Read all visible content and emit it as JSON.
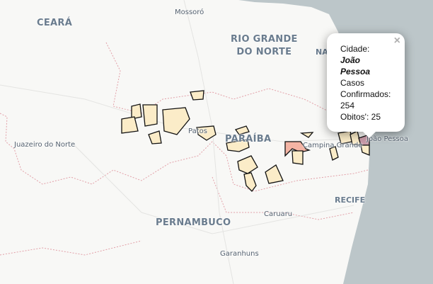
{
  "map": {
    "colors": {
      "land": "#f8f8f6",
      "sea": "#bcc6c9",
      "municipality_low": "#fbecc8",
      "municipality_mid": "#f4b4a4",
      "municipality_high": "#c99aa8",
      "border": "#e2a0a8"
    },
    "state_labels": [
      "CEARÁ",
      "RIO GRANDE DO NORTE",
      "PARAÍBA",
      "PERNAMBUCO"
    ],
    "state_labels_lines": {
      "rn1": "RIO GRANDE",
      "rn2": "DO NORTE"
    },
    "city_labels": {
      "mossoro": "Mossoró",
      "natal": "NA",
      "juazeiro": "Juazeiro do Norte",
      "patos": "Patos",
      "campina": "Campina Grande",
      "joao_pessoa": "João Pessoa",
      "recife": "RECIFE",
      "caruaru": "Caruaru",
      "garanhuns": "Garanhuns"
    }
  },
  "popup": {
    "city_label": "Cidade:",
    "city": "João Pessoa",
    "cases_label_1": "Casos",
    "cases_label_2": "Confirmados:",
    "cases": "254",
    "deaths_label": "Obitos':",
    "deaths": "25",
    "close_icon": "×"
  }
}
